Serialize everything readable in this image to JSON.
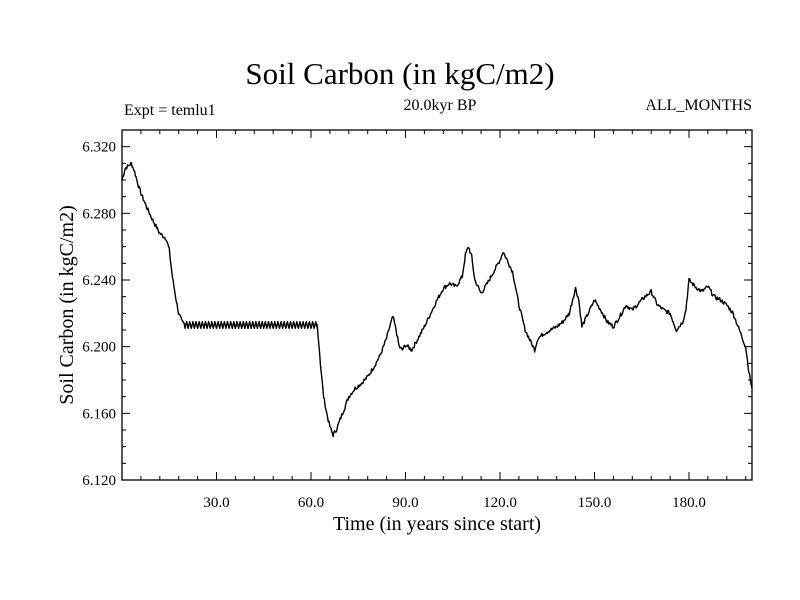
{
  "header": {
    "title": "Soil Carbon (in kgC/m2)",
    "left_label": "Expt = temlu1",
    "center_label": "20.0kyr BP",
    "right_label": "ALL_MONTHS"
  },
  "chart_data": {
    "type": "line",
    "title": "Soil Carbon (in kgC/m2)",
    "xlabel": "Time (in years since start)",
    "ylabel": "Soil Carbon (in kgC/m2)",
    "xlim": [
      0,
      200
    ],
    "ylim": [
      6.12,
      6.33
    ],
    "x_ticks": [
      30,
      60,
      90,
      120,
      150,
      180
    ],
    "x_tick_labels": [
      "30.0",
      "60.0",
      "90.0",
      "120.0",
      "150.0",
      "180.0"
    ],
    "y_ticks": [
      6.12,
      6.16,
      6.2,
      6.24,
      6.28,
      6.32
    ],
    "y_tick_labels": [
      "6.120",
      "6.160",
      "6.200",
      "6.240",
      "6.280",
      "6.320"
    ],
    "grid": false,
    "line_color": "#000000",
    "oscillation_segment": {
      "x_start": 20,
      "x_end": 62,
      "y_low": 6.211,
      "y_high": 6.215
    },
    "series": [
      {
        "x": [
          0,
          1,
          3,
          4,
          5,
          6,
          8,
          10,
          12,
          14,
          15,
          16,
          17,
          18,
          19,
          20,
          62,
          63,
          64,
          65,
          66,
          67,
          68,
          70,
          72,
          74,
          76,
          78,
          80,
          82,
          84,
          85,
          86,
          87,
          88,
          89,
          90,
          92,
          94,
          96,
          98,
          100,
          102,
          104,
          106,
          108,
          109,
          110,
          111,
          112,
          114,
          116,
          118,
          120,
          121,
          122,
          124,
          126,
          128,
          130,
          131,
          132,
          134,
          136,
          138,
          140,
          142,
          143,
          144,
          145,
          146,
          148,
          150,
          152,
          154,
          156,
          158,
          160,
          162,
          164,
          166,
          168,
          170,
          172,
          174,
          176,
          178,
          179,
          180,
          182,
          184,
          186,
          188,
          190,
          192,
          194,
          196,
          198,
          199,
          200
        ],
        "y": [
          6.3,
          6.307,
          6.31,
          6.305,
          6.298,
          6.292,
          6.283,
          6.275,
          6.268,
          6.265,
          6.258,
          6.242,
          6.23,
          6.22,
          6.215,
          6.213,
          6.213,
          6.19,
          6.17,
          6.16,
          6.152,
          6.147,
          6.15,
          6.16,
          6.17,
          6.175,
          6.178,
          6.182,
          6.188,
          6.195,
          6.205,
          6.212,
          6.218,
          6.21,
          6.2,
          6.198,
          6.201,
          6.198,
          6.205,
          6.212,
          6.22,
          6.228,
          6.235,
          6.238,
          6.236,
          6.242,
          6.255,
          6.26,
          6.254,
          6.24,
          6.232,
          6.238,
          6.245,
          6.252,
          6.257,
          6.253,
          6.245,
          6.225,
          6.21,
          6.202,
          6.198,
          6.205,
          6.208,
          6.21,
          6.212,
          6.215,
          6.22,
          6.228,
          6.235,
          6.228,
          6.212,
          6.22,
          6.228,
          6.222,
          6.215,
          6.212,
          6.218,
          6.225,
          6.222,
          6.226,
          6.23,
          6.233,
          6.225,
          6.222,
          6.22,
          6.21,
          6.215,
          6.222,
          6.24,
          6.236,
          6.233,
          6.236,
          6.23,
          6.228,
          6.225,
          6.22,
          6.21,
          6.2,
          6.185,
          6.175
        ]
      }
    ]
  }
}
